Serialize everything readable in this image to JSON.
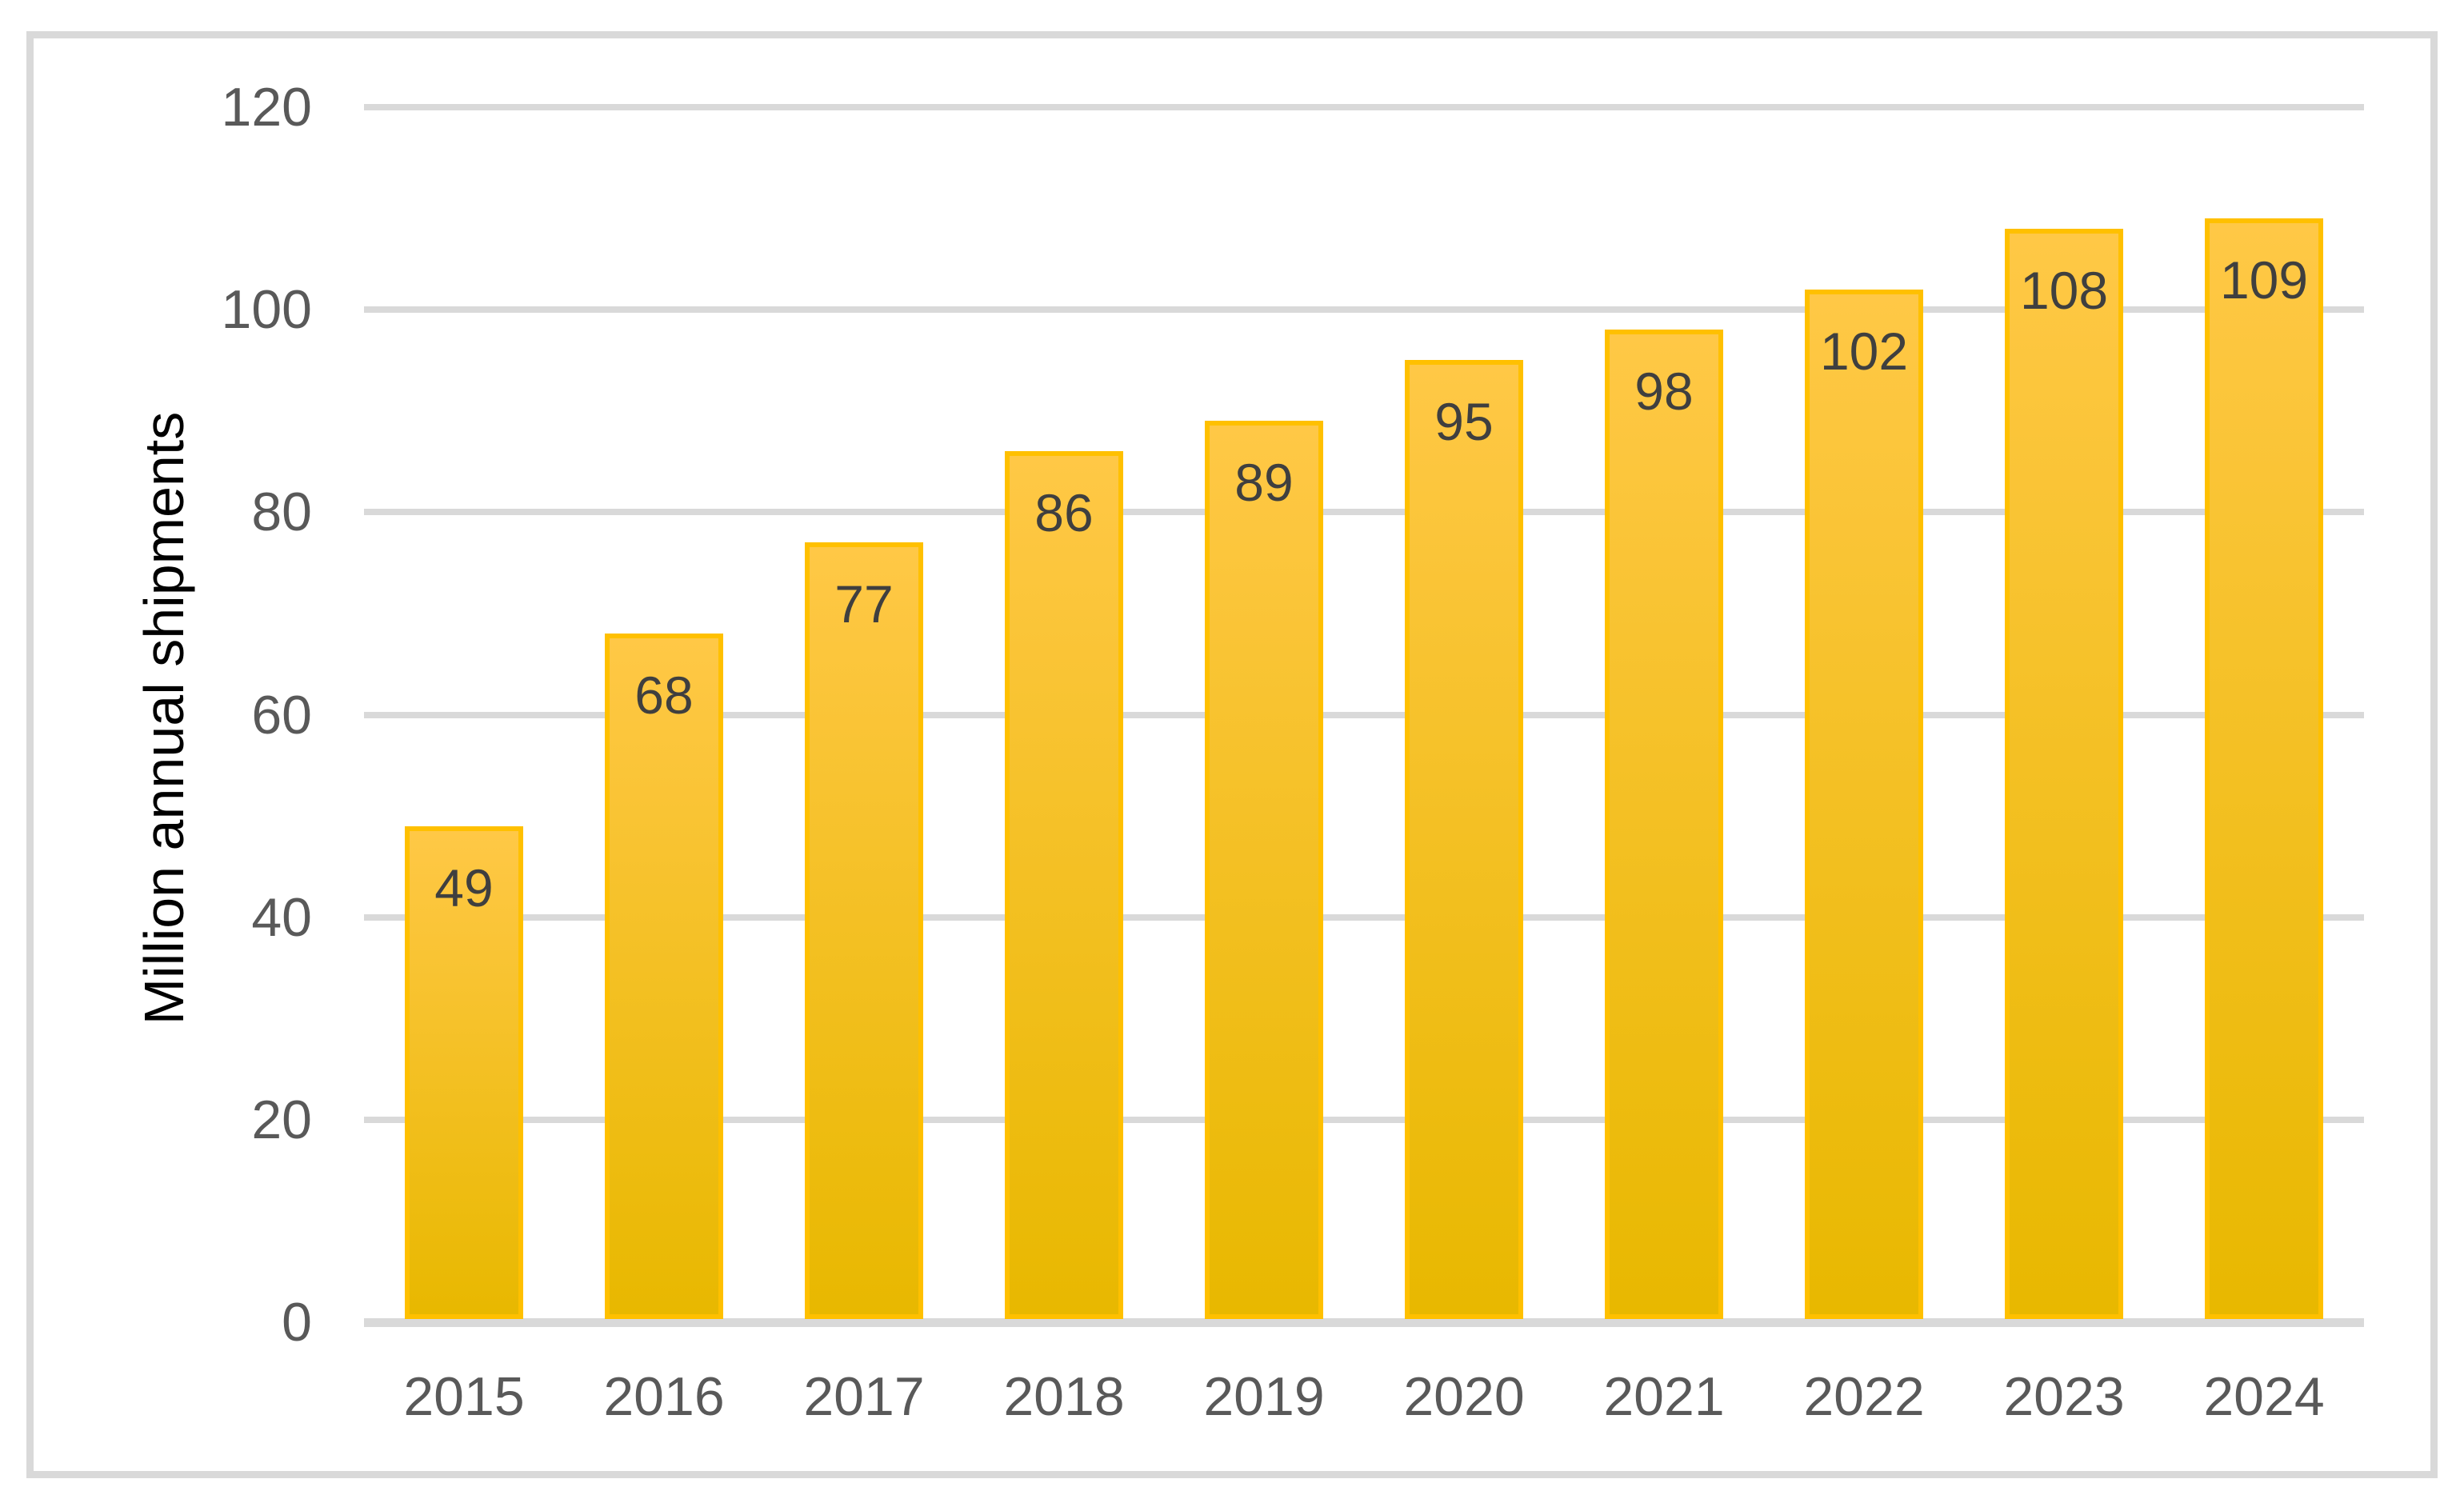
{
  "chart_data": {
    "type": "bar",
    "categories": [
      "2015",
      "2016",
      "2017",
      "2018",
      "2019",
      "2020",
      "2021",
      "2022",
      "2023",
      "2024"
    ],
    "values": [
      49,
      68,
      77,
      86,
      89,
      95,
      98,
      102,
      108,
      109
    ],
    "title": "",
    "xlabel": "",
    "ylabel": "Million annual shipments",
    "ylim": [
      0,
      120
    ],
    "ytick_step": 20,
    "yticks": [
      0,
      20,
      40,
      60,
      80,
      100,
      120
    ],
    "grid": "horizontal",
    "legend_position": "none",
    "data_labels": "inside-end",
    "colors": {
      "bar_fill_top": "#FFC846",
      "bar_fill_bottom": "#E8B800",
      "bar_border": "#FFC000",
      "data_label_text": "#3F3F3F",
      "axis_text": "#595959",
      "gridline": "#D9D9D9",
      "axis_line": "#D9D9D9",
      "frame_border": "#D9D9D9",
      "background": "#FFFFFF"
    }
  }
}
